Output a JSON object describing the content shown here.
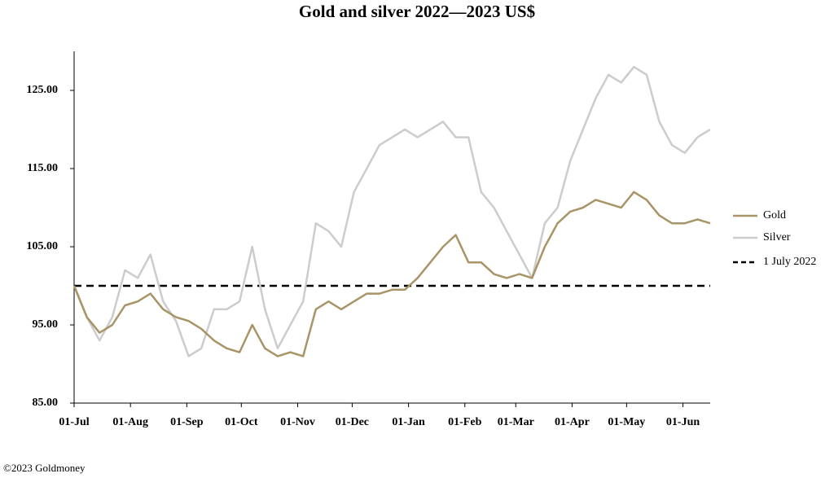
{
  "chart_data": {
    "type": "line",
    "title": "Gold and silver 2022—2023  US$",
    "footnote": "©2023 Goldmoney",
    "x": [
      "2022-07-01",
      "2022-07-08",
      "2022-07-15",
      "2022-07-22",
      "2022-07-29",
      "2022-08-05",
      "2022-08-12",
      "2022-08-19",
      "2022-08-26",
      "2022-09-02",
      "2022-09-09",
      "2022-09-16",
      "2022-09-23",
      "2022-09-30",
      "2022-10-07",
      "2022-10-14",
      "2022-10-21",
      "2022-10-28",
      "2022-11-04",
      "2022-11-11",
      "2022-11-18",
      "2022-11-25",
      "2022-12-02",
      "2022-12-09",
      "2022-12-16",
      "2022-12-23",
      "2022-12-30",
      "2023-01-06",
      "2023-01-13",
      "2023-01-20",
      "2023-01-27",
      "2023-02-03",
      "2023-02-10",
      "2023-02-17",
      "2023-02-24",
      "2023-03-03",
      "2023-03-10",
      "2023-03-17",
      "2023-03-24",
      "2023-03-31",
      "2023-04-07",
      "2023-04-14",
      "2023-04-21",
      "2023-04-28",
      "2023-05-05",
      "2023-05-12",
      "2023-05-19",
      "2023-05-26",
      "2023-06-02",
      "2023-06-09",
      "2023-06-16"
    ],
    "series": [
      {
        "name": "Gold",
        "color": "#a89466",
        "values": [
          100,
          96,
          94,
          95,
          97.5,
          98,
          99,
          97,
          96,
          95.5,
          94.5,
          93,
          92,
          91.5,
          95,
          92,
          91,
          91.5,
          91,
          97,
          98,
          97,
          98,
          99,
          99,
          99.5,
          99.5,
          101,
          103,
          105,
          106.5,
          103,
          103,
          101.5,
          101,
          101.5,
          101,
          105,
          108,
          109.5,
          110,
          111,
          110.5,
          110,
          112,
          111,
          109,
          108,
          108,
          108.5,
          108
        ]
      },
      {
        "name": "Silver",
        "color": "#cccccc",
        "values": [
          100,
          96,
          93,
          96,
          102,
          101,
          104,
          98,
          95.5,
          91,
          92,
          97,
          97,
          98,
          105,
          97,
          92,
          95,
          98,
          108,
          107,
          105,
          112,
          115,
          118,
          119,
          120,
          119,
          120,
          121,
          119,
          119,
          112,
          110,
          107,
          104,
          101,
          108,
          110,
          116,
          120,
          124,
          127,
          126,
          128,
          127,
          121,
          118,
          117,
          119,
          120
        ]
      }
    ],
    "reference_line": {
      "name": "1 July 2022",
      "value": 100,
      "color": "#000000"
    },
    "xlim": [
      "2022-07-01",
      "2023-06-16"
    ],
    "xticks": [
      {
        "value": "2022-07-01",
        "label": "01-Jul"
      },
      {
        "value": "2022-08-01",
        "label": "01-Aug"
      },
      {
        "value": "2022-09-01",
        "label": "01-Sep"
      },
      {
        "value": "2022-10-01",
        "label": "01-Oct"
      },
      {
        "value": "2022-11-01",
        "label": "01-Nov"
      },
      {
        "value": "2022-12-01",
        "label": "01-Dec"
      },
      {
        "value": "2023-01-01",
        "label": "01-Jan"
      },
      {
        "value": "2023-02-01",
        "label": "01-Feb"
      },
      {
        "value": "2023-03-01",
        "label": "01-Mar"
      },
      {
        "value": "2023-04-01",
        "label": "01-Apr"
      },
      {
        "value": "2023-05-01",
        "label": "01-May"
      },
      {
        "value": "2023-06-01",
        "label": "01-Jun"
      }
    ],
    "ylim": [
      85,
      130
    ],
    "yticks": [
      {
        "value": 85,
        "label": "85.00"
      },
      {
        "value": 95,
        "label": "95.00"
      },
      {
        "value": 105,
        "label": "105.00"
      },
      {
        "value": 115,
        "label": "115.00"
      },
      {
        "value": 125,
        "label": "125.00"
      }
    ],
    "legend": "right"
  }
}
